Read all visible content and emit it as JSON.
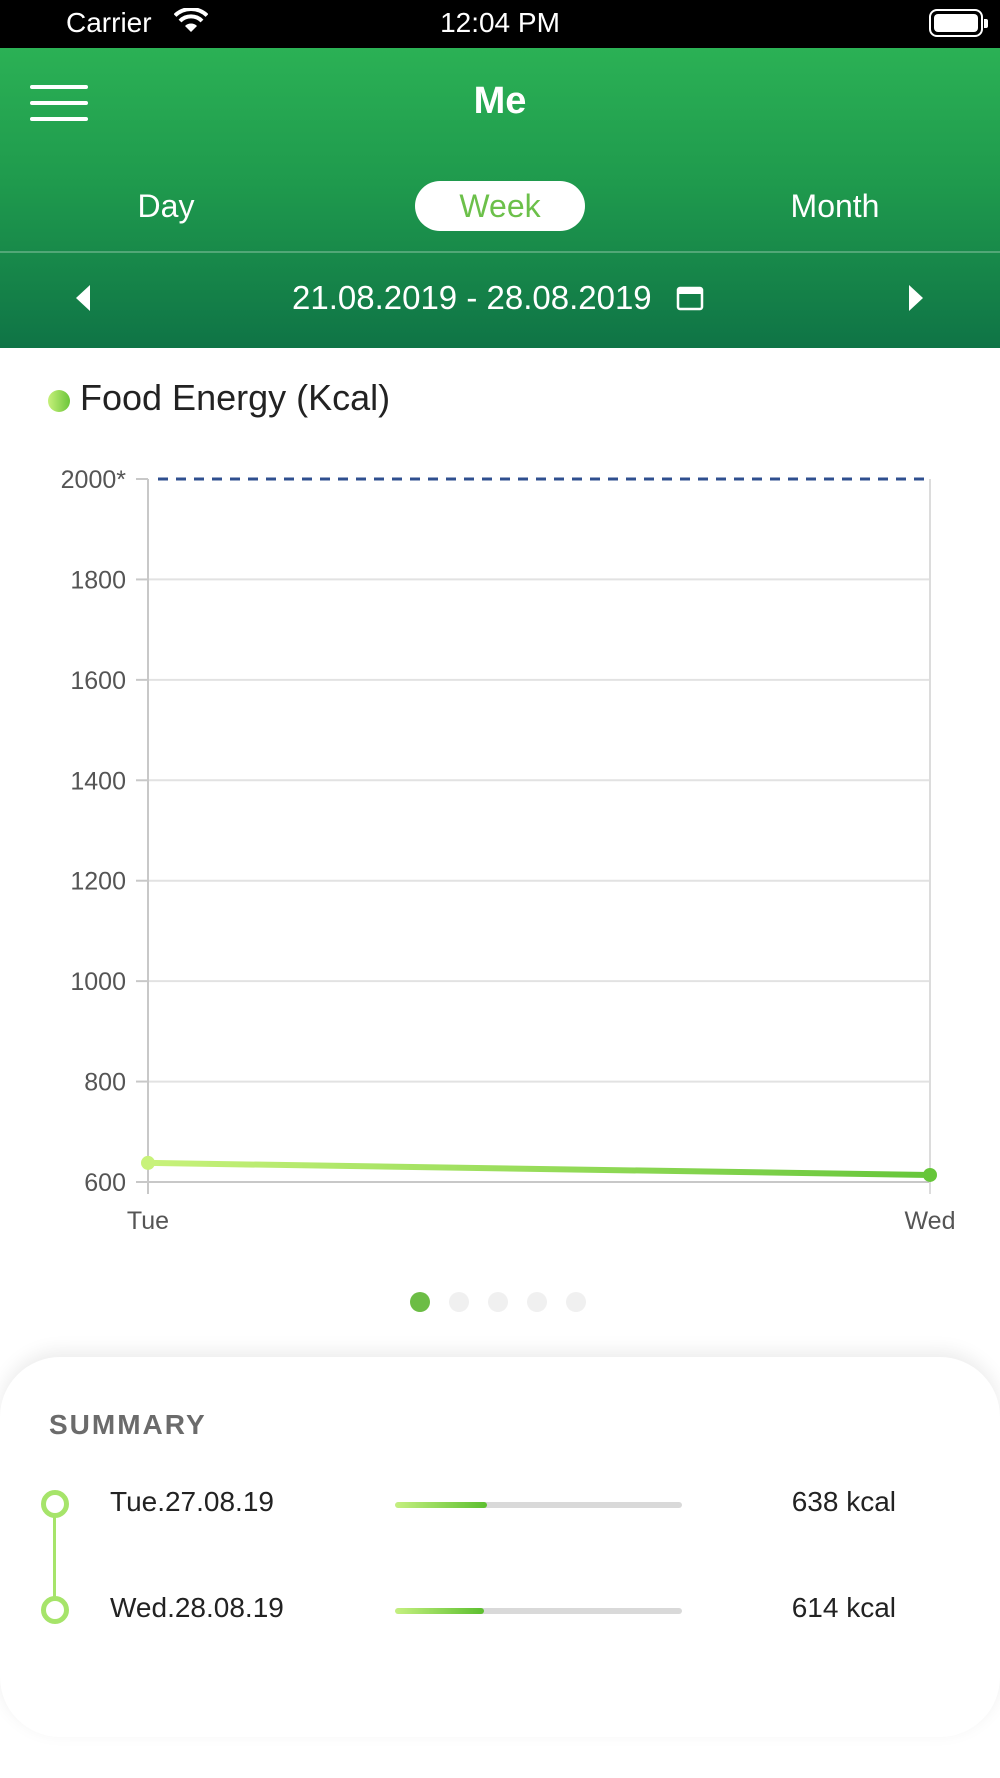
{
  "status_bar": {
    "carrier": "Carrier",
    "time": "12:04 PM"
  },
  "header": {
    "title": "Me",
    "tabs": [
      {
        "label": "Day",
        "selected": false
      },
      {
        "label": "Week",
        "selected": true
      },
      {
        "label": "Month",
        "selected": false
      }
    ],
    "date_range": "21.08.2019 - 28.08.2019",
    "colors": {
      "gradient_top": "#2bb155",
      "gradient_bottom": "#0f7446",
      "accent": "#6cc04a"
    }
  },
  "chart": {
    "legend_label": "Food Energy (Kcal)",
    "page_indicator": {
      "count": 5,
      "active": 0
    }
  },
  "chart_data": {
    "type": "line",
    "title": "Food Energy (Kcal)",
    "categories": [
      "Tue",
      "Wed"
    ],
    "series": [
      {
        "name": "Food Energy (Kcal)",
        "values": [
          638,
          614
        ],
        "color": "#6cc63a"
      }
    ],
    "ylim": [
      600,
      2000
    ],
    "yticks": [
      600,
      800,
      1000,
      1200,
      1400,
      1600,
      1800
    ],
    "goal_line": {
      "value": 2000,
      "label": "2000*",
      "style": "dashed",
      "color": "#2f4f8f"
    },
    "grid": true
  },
  "summary": {
    "title": "SUMMARY",
    "rows": [
      {
        "date": "Tue.27.08.19",
        "value": "638 kcal",
        "fraction": 0.32
      },
      {
        "date": "Wed.28.08.19",
        "value": "614 kcal",
        "fraction": 0.31
      }
    ]
  }
}
